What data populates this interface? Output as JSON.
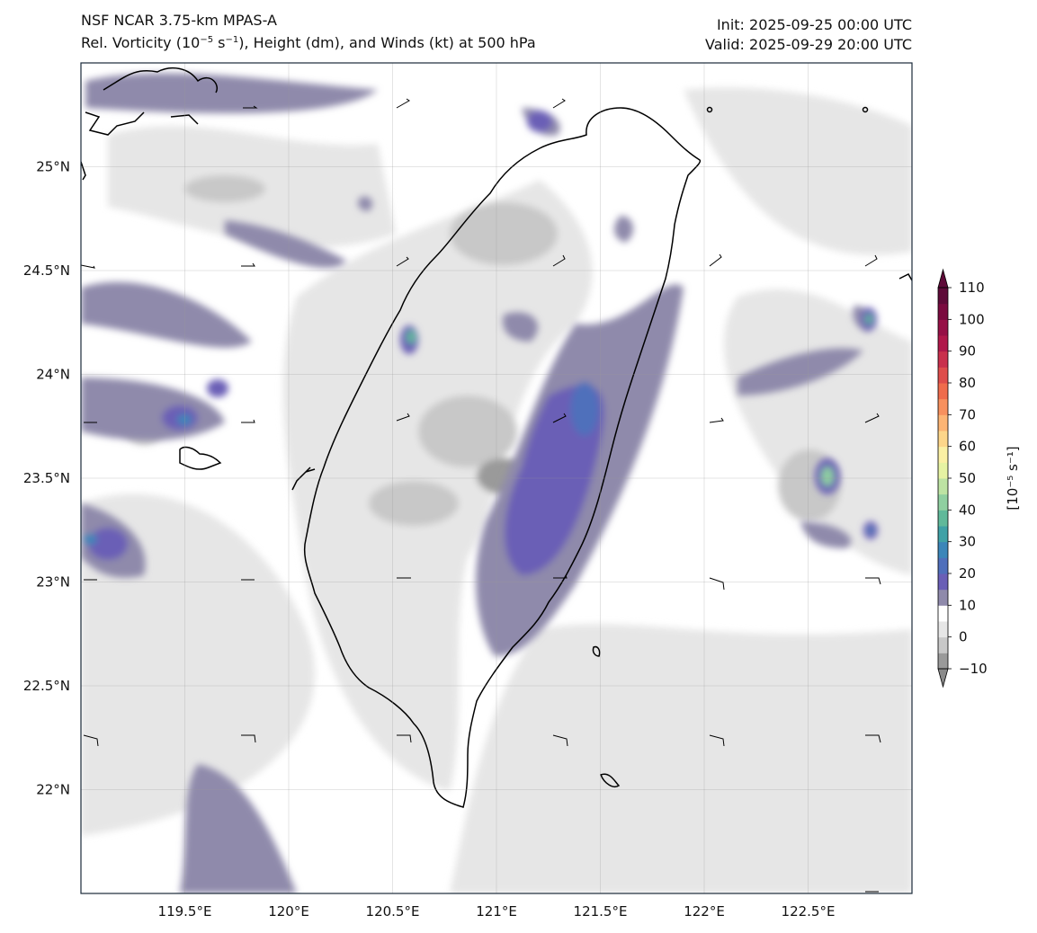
{
  "title": {
    "model": "NSF NCAR 3.75-km MPAS-A",
    "field_prefix": "Rel. Vorticity (10",
    "field_exp1": "−5",
    "field_mid": " s",
    "field_exp2": "−1",
    "field_suffix": "), Height (dm), and Winds (kt) at 500 hPa",
    "init": "Init: 2025-09-25 00:00 UTC",
    "valid": "Valid: 2025-09-29 20:00 UTC"
  },
  "axes": {
    "lon_range": [
      119,
      123
    ],
    "lat_range": [
      21.5,
      25.5
    ],
    "x_ticks": [
      "119.5°E",
      "120°E",
      "120.5°E",
      "121°E",
      "121.5°E",
      "122°E",
      "122.5°E"
    ],
    "y_ticks": [
      "25°N",
      "24.5°N",
      "24°N",
      "23.5°N",
      "23°N",
      "22.5°N",
      "22°N"
    ]
  },
  "colorbar": {
    "levels": [
      -10,
      -5,
      0,
      5,
      10,
      15,
      20,
      25,
      30,
      35,
      40,
      45,
      50,
      55,
      60,
      65,
      70,
      75,
      80,
      85,
      90,
      95,
      100,
      105,
      110
    ],
    "tick_labels": [
      "110",
      "100",
      "90",
      "80",
      "70",
      "60",
      "50",
      "40",
      "30",
      "20",
      "10",
      "0",
      "−10"
    ],
    "label": "[10⁻⁵ s⁻¹]",
    "colors": [
      "#9a9a9a",
      "#c8c8c8",
      "#e6e6e6",
      "#ffffff",
      "#8f8aab",
      "#6a5fb6",
      "#4f6fbb",
      "#3b86b9",
      "#3fa1a6",
      "#60b99a",
      "#8fcfa0",
      "#bde3a3",
      "#e6f3a3",
      "#fbf0a4",
      "#fdd68a",
      "#fcb474",
      "#f7905e",
      "#ef6c4c",
      "#de4d4b",
      "#c9304c",
      "#b0184a",
      "#961046",
      "#7a0a3f",
      "#5e0a38"
    ]
  },
  "legend_units": "kt"
}
